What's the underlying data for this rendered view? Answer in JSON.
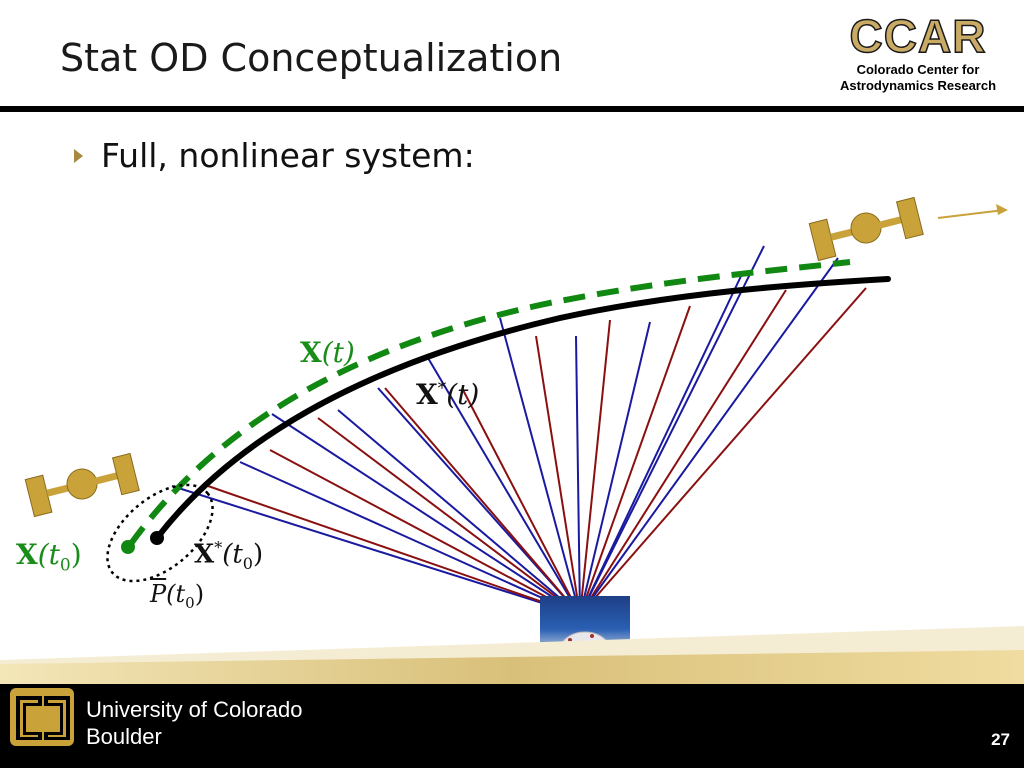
{
  "slide": {
    "title": "Stat OD Conceptualization",
    "bullet": "Full, nonlinear system:",
    "page_number": "27"
  },
  "logo": {
    "name": "CCAR",
    "line1": "Colorado Center for",
    "line2": "Astrodynamics Research"
  },
  "footer": {
    "university_line1": "University of Colorado",
    "university_line2": "Boulder"
  },
  "diagram": {
    "labels": {
      "true_traj_sym": "X",
      "true_traj_arg": "(t)",
      "ref_traj_sym": "X",
      "ref_traj_sup": "*",
      "ref_traj_arg": "(t)",
      "true_init_sym": "X",
      "true_init_arg": "(t",
      "true_init_sub": "0",
      "true_init_close": ")",
      "ref_init_sym": "X",
      "ref_init_sup": "*",
      "ref_init_arg": "(t",
      "ref_init_sub": "0",
      "ref_init_close": ")",
      "cov_sym": "P",
      "cov_arg": "(t",
      "cov_sub": "0",
      "cov_close": ")"
    },
    "colors": {
      "true_trajectory": "#118811",
      "reference_trajectory": "#000000",
      "observation_blue": "#1a1aa0",
      "observation_red": "#8a1010",
      "satellite_gold": "#c9a23a",
      "accent": "#a88a3e"
    },
    "icons": [
      "satellite-icon",
      "ground-station-telescope-icon",
      "direction-arrow-icon",
      "cu-logo-icon"
    ]
  }
}
